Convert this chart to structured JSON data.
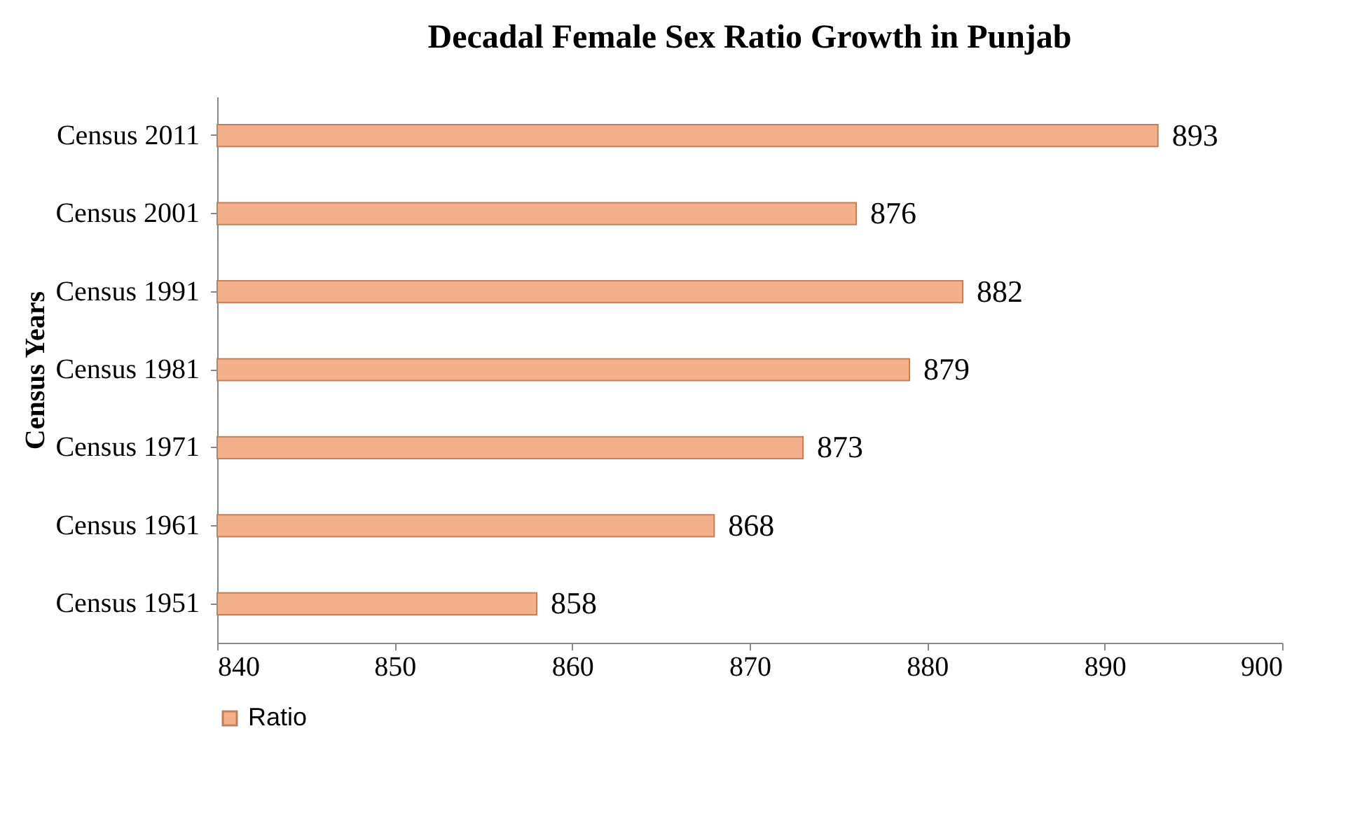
{
  "chart_data": {
    "type": "bar",
    "orientation": "horizontal",
    "title": "Decadal Female Sex Ratio Growth in Punjab",
    "ylabel": "Census Years",
    "categories": [
      "Census 2011",
      "Census 2001",
      "Census 1991",
      "Census 1981",
      "Census 1971",
      "Census 1961",
      "Census 1951"
    ],
    "series": [
      {
        "name": "Ratio",
        "color": "#f4b08a",
        "values": [
          893,
          876,
          882,
          879,
          873,
          868,
          858
        ]
      }
    ],
    "xlim": [
      840,
      900
    ],
    "xticks": [
      840,
      850,
      860,
      870,
      880,
      890,
      900
    ],
    "data_labels": true,
    "legend": "bottom",
    "grid": false
  }
}
